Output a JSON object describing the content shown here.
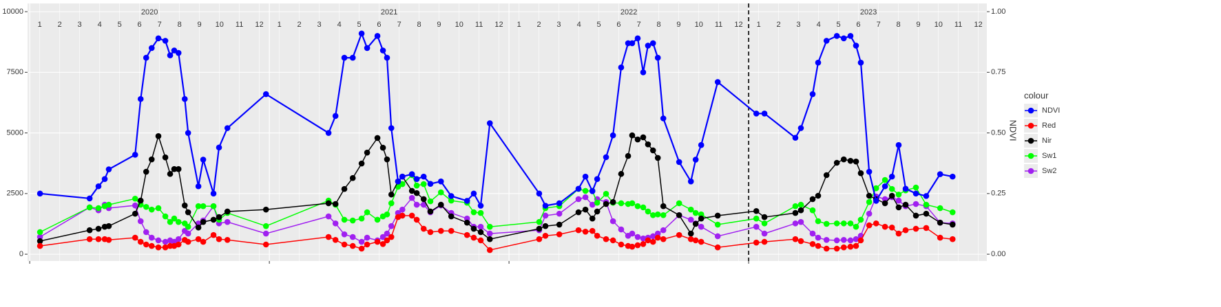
{
  "chart_data": {
    "type": "line",
    "x": [
      2020.043,
      2020.25,
      2020.287,
      2020.313,
      2020.33,
      2020.44,
      2020.463,
      2020.486,
      2020.509,
      2020.537,
      2020.566,
      2020.586,
      2020.603,
      2020.621,
      2020.647,
      2020.661,
      2020.704,
      2020.724,
      2020.767,
      2020.79,
      2020.825,
      2020.986,
      2021.247,
      2021.276,
      2021.313,
      2021.348,
      2021.385,
      2021.408,
      2021.451,
      2021.474,
      2021.491,
      2021.509,
      2021.537,
      2021.555,
      2021.595,
      2021.615,
      2021.644,
      2021.672,
      2021.716,
      2021.759,
      2021.825,
      2021.853,
      2021.882,
      2021.92,
      2022.126,
      2022.152,
      2022.21,
      2022.29,
      2022.319,
      2022.348,
      2022.368,
      2022.405,
      2022.434,
      2022.468,
      2022.497,
      2022.514,
      2022.537,
      2022.56,
      2022.58,
      2022.601,
      2022.621,
      2022.644,
      2022.71,
      2022.759,
      2022.779,
      2022.802,
      2022.871,
      2023.032,
      2023.066,
      2023.195,
      2023.218,
      2023.267,
      2023.29,
      2023.325,
      2023.368,
      2023.397,
      2023.425,
      2023.448,
      2023.468,
      2023.503,
      2023.532,
      2023.569,
      2023.598,
      2023.626,
      2023.655,
      2023.698,
      2023.741,
      2023.799,
      2023.851
    ],
    "series": [
      {
        "name": "NDVI",
        "color": "#0000ff",
        "axis": "y2",
        "values": [
          0.25,
          0.23,
          0.28,
          0.31,
          0.35,
          0.41,
          0.64,
          0.81,
          0.85,
          0.89,
          0.88,
          0.82,
          0.84,
          0.83,
          0.64,
          0.5,
          0.28,
          0.39,
          0.25,
          0.44,
          0.52,
          0.66,
          0.5,
          0.57,
          0.81,
          0.81,
          0.91,
          0.85,
          0.9,
          0.84,
          0.81,
          0.52,
          0.3,
          0.32,
          0.33,
          0.31,
          0.32,
          0.29,
          0.3,
          0.24,
          0.22,
          0.25,
          0.2,
          0.54,
          0.25,
          0.2,
          0.21,
          0.27,
          0.32,
          0.26,
          0.31,
          0.4,
          0.49,
          0.77,
          0.87,
          0.87,
          0.89,
          0.75,
          0.86,
          0.87,
          0.81,
          0.56,
          0.38,
          0.3,
          0.39,
          0.45,
          0.71,
          0.58,
          0.58,
          0.48,
          0.52,
          0.66,
          0.79,
          0.88,
          0.9,
          0.89,
          0.9,
          0.86,
          0.79,
          0.34,
          0.22,
          0.28,
          0.32,
          0.45,
          0.27,
          0.25,
          0.24,
          0.33,
          0.32
        ]
      },
      {
        "name": "Red",
        "color": "#ff0000",
        "values": [
          340,
          620,
          620,
          620,
          590,
          680,
          510,
          400,
          340,
          280,
          280,
          340,
          340,
          400,
          590,
          510,
          620,
          510,
          790,
          620,
          590,
          400,
          710,
          590,
          400,
          340,
          230,
          400,
          510,
          420,
          570,
          710,
          1530,
          1590,
          1590,
          1420,
          1050,
          910,
          960,
          960,
          790,
          680,
          570,
          170,
          620,
          760,
          820,
          990,
          930,
          960,
          760,
          620,
          570,
          400,
          340,
          310,
          370,
          420,
          570,
          510,
          680,
          620,
          790,
          620,
          570,
          510,
          280,
          480,
          510,
          620,
          540,
          420,
          340,
          230,
          230,
          280,
          310,
          340,
          570,
          1190,
          1270,
          1130,
          1100,
          850,
          990,
          1050,
          1080,
          680,
          620
        ]
      },
      {
        "name": "Nir",
        "color": "#000000",
        "values": [
          540,
          990,
          1050,
          1130,
          1160,
          1670,
          2210,
          3400,
          3910,
          4870,
          3990,
          3310,
          3510,
          3510,
          2010,
          1730,
          1100,
          1330,
          1420,
          1530,
          1760,
          1840,
          2100,
          2070,
          2690,
          3140,
          3740,
          4190,
          4790,
          4390,
          3910,
          2460,
          3000,
          3200,
          2610,
          2520,
          2270,
          1760,
          2040,
          1560,
          1300,
          1050,
          910,
          620,
          1050,
          1160,
          1220,
          1730,
          1840,
          1470,
          1760,
          2070,
          2150,
          3310,
          4050,
          4900,
          4730,
          4820,
          4530,
          4280,
          3970,
          1980,
          1610,
          850,
          1250,
          1470,
          1590,
          1780,
          1530,
          1700,
          1810,
          2270,
          2410,
          3260,
          3770,
          3910,
          3850,
          3820,
          3340,
          2410,
          2270,
          2100,
          2410,
          1930,
          2040,
          1590,
          1670,
          1300,
          1220
        ]
      },
      {
        "name": "Sw1",
        "color": "#00ff00",
        "values": [
          910,
          1930,
          1900,
          1980,
          2040,
          2290,
          2040,
          1950,
          1840,
          1900,
          1560,
          1330,
          1470,
          1330,
          1270,
          1130,
          1980,
          1980,
          1980,
          1420,
          1700,
          1160,
          2210,
          2040,
          1420,
          1390,
          1470,
          1730,
          1420,
          1560,
          1640,
          2100,
          2780,
          2890,
          3260,
          2830,
          2890,
          2180,
          2550,
          2210,
          2120,
          1730,
          1700,
          1130,
          1330,
          1900,
          1980,
          2690,
          2610,
          2610,
          2120,
          2490,
          2120,
          2100,
          2070,
          2100,
          1980,
          1930,
          1760,
          1610,
          1640,
          1610,
          2100,
          1840,
          1700,
          1640,
          1220,
          1470,
          1270,
          1980,
          2040,
          1810,
          1360,
          1250,
          1270,
          1270,
          1270,
          1130,
          1420,
          2150,
          2720,
          3060,
          2690,
          2460,
          2630,
          2750,
          2040,
          1900,
          1730
        ]
      },
      {
        "name": "Sw2",
        "color": "#a020f0",
        "values": [
          710,
          1930,
          1810,
          2040,
          1900,
          2010,
          1360,
          910,
          680,
          570,
          510,
          570,
          510,
          620,
          960,
          850,
          1270,
          1390,
          1980,
          1270,
          1330,
          850,
          1560,
          1270,
          820,
          710,
          510,
          680,
          570,
          710,
          850,
          1160,
          1700,
          1840,
          2320,
          2040,
          2040,
          1730,
          2010,
          1700,
          1470,
          1130,
          1130,
          850,
          990,
          1590,
          1670,
          2270,
          2350,
          2040,
          2270,
          2150,
          1360,
          1020,
          760,
          850,
          710,
          650,
          680,
          740,
          850,
          990,
          1610,
          1420,
          1270,
          1130,
          740,
          1130,
          850,
          1270,
          1330,
          850,
          680,
          590,
          570,
          590,
          570,
          620,
          760,
          1670,
          2380,
          2270,
          2350,
          2210,
          1980,
          2070,
          1980,
          1300,
          1270
        ]
      }
    ],
    "xlim": [
      2019.991,
      2023.994
    ],
    "xticks": [
      2020,
      2021,
      2022,
      2023
    ],
    "year_labels": [
      {
        "value": 2020.5,
        "label": "2020"
      },
      {
        "value": 2021.5,
        "label": "2021"
      },
      {
        "value": 2022.5,
        "label": "2022"
      },
      {
        "value": 2023.5,
        "label": "2023"
      }
    ],
    "month_ticks": [
      {
        "value": 2020.042,
        "label": "1"
      },
      {
        "value": 2020.125,
        "label": "2"
      },
      {
        "value": 2020.208,
        "label": "3"
      },
      {
        "value": 2020.292,
        "label": "4"
      },
      {
        "value": 2020.375,
        "label": "5"
      },
      {
        "value": 2020.458,
        "label": "6"
      },
      {
        "value": 2020.542,
        "label": "7"
      },
      {
        "value": 2020.625,
        "label": "8"
      },
      {
        "value": 2020.708,
        "label": "9"
      },
      {
        "value": 2020.792,
        "label": "10"
      },
      {
        "value": 2020.875,
        "label": "11"
      },
      {
        "value": 2020.958,
        "label": "12"
      },
      {
        "value": 2021.042,
        "label": "1"
      },
      {
        "value": 2021.125,
        "label": "2"
      },
      {
        "value": 2021.208,
        "label": "3"
      },
      {
        "value": 2021.292,
        "label": "4"
      },
      {
        "value": 2021.375,
        "label": "5"
      },
      {
        "value": 2021.458,
        "label": "6"
      },
      {
        "value": 2021.542,
        "label": "7"
      },
      {
        "value": 2021.625,
        "label": "8"
      },
      {
        "value": 2021.708,
        "label": "9"
      },
      {
        "value": 2021.792,
        "label": "10"
      },
      {
        "value": 2021.875,
        "label": "11"
      },
      {
        "value": 2021.958,
        "label": "12"
      },
      {
        "value": 2022.042,
        "label": "1"
      },
      {
        "value": 2022.125,
        "label": "2"
      },
      {
        "value": 2022.208,
        "label": "3"
      },
      {
        "value": 2022.292,
        "label": "4"
      },
      {
        "value": 2022.375,
        "label": "5"
      },
      {
        "value": 2022.458,
        "label": "6"
      },
      {
        "value": 2022.542,
        "label": "7"
      },
      {
        "value": 2022.625,
        "label": "8"
      },
      {
        "value": 2022.708,
        "label": "9"
      },
      {
        "value": 2022.792,
        "label": "10"
      },
      {
        "value": 2022.875,
        "label": "11"
      },
      {
        "value": 2022.958,
        "label": "12"
      },
      {
        "value": 2023.042,
        "label": "1"
      },
      {
        "value": 2023.125,
        "label": "2"
      },
      {
        "value": 2023.208,
        "label": "3"
      },
      {
        "value": 2023.292,
        "label": "4"
      },
      {
        "value": 2023.375,
        "label": "5"
      },
      {
        "value": 2023.458,
        "label": "6"
      },
      {
        "value": 2023.542,
        "label": "7"
      },
      {
        "value": 2023.625,
        "label": "8"
      },
      {
        "value": 2023.708,
        "label": "9"
      },
      {
        "value": 2023.792,
        "label": "10"
      },
      {
        "value": 2023.875,
        "label": "11"
      },
      {
        "value": 2023.958,
        "label": "12"
      }
    ],
    "vline": 2023,
    "ylim": [
      -280,
      10340
    ],
    "yticks": [
      0,
      2500,
      5000,
      7500,
      10000
    ],
    "y2lim": [
      -0.028,
      1.034
    ],
    "y2ticks": [
      {
        "value": 0,
        "label": "0.00"
      },
      {
        "value": 0.25,
        "label": "0.25"
      },
      {
        "value": 0.5,
        "label": "0.50"
      },
      {
        "value": 0.75,
        "label": "0.75"
      },
      {
        "value": 1,
        "label": "1.00"
      }
    ],
    "y2label": "NDVI",
    "legend_title": "colour",
    "grid": true
  }
}
